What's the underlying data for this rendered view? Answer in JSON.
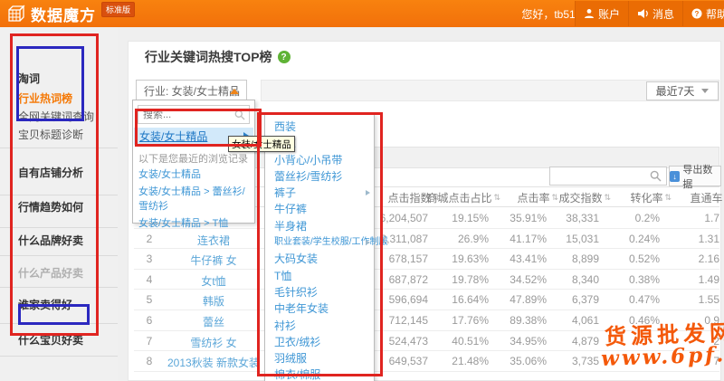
{
  "header": {
    "logo": "数据魔方",
    "badge": "标准版",
    "greeting": "您好，tb5198568",
    "vip_glyph": "♥",
    "nav": [
      {
        "label": "账户",
        "icon": "user-icon"
      },
      {
        "label": "消息",
        "icon": "message-icon"
      },
      {
        "label": "帮助",
        "icon": "help-icon"
      }
    ]
  },
  "sidebar": {
    "items": [
      {
        "label": "淘词",
        "type": "section",
        "active": false
      },
      {
        "label": "行业热词榜",
        "type": "sub",
        "active": true
      },
      {
        "label": "全网关键词查询",
        "type": "sub",
        "active": false
      },
      {
        "label": "宝贝标题诊断",
        "type": "sub",
        "active": false
      },
      {
        "label": "自有店铺分析",
        "type": "section",
        "active": false
      },
      {
        "label": "行情趋势如何",
        "type": "section",
        "active": false
      },
      {
        "label": "什么品牌好卖",
        "type": "section",
        "active": false
      },
      {
        "label": "什么产品好卖",
        "type": "disabled",
        "active": false
      },
      {
        "label": "谁家卖得好",
        "type": "section",
        "active": false
      },
      {
        "label": "什么宝贝好卖",
        "type": "section",
        "active": false
      }
    ]
  },
  "main": {
    "title": "行业关键词热搜TOP榜",
    "help_glyph": "?",
    "industry_control": "行业: 女装/女士精品",
    "date_filter": "最近7天"
  },
  "category_dropdown": {
    "search_placeholder": "搜索...",
    "highlighted_item": "女装/女士精品",
    "history_title": "以下是您最近的浏览记录",
    "history_items": [
      "女装/女士精品",
      "女装/女士精品 > 蕾丝衫/雪纺衫",
      "女装/女士精品 > T恤"
    ]
  },
  "tooltip_text": "女装/女士精品",
  "submenu": {
    "items": [
      {
        "label": "西装",
        "arrow": false
      },
      {
        "label": "毛衣",
        "arrow": false
      },
      {
        "label": "小背心/小吊带",
        "arrow": false
      },
      {
        "label": "蕾丝衫/雪纺衫",
        "arrow": false
      },
      {
        "label": "裤子",
        "arrow": true
      },
      {
        "label": "牛仔裤",
        "arrow": false
      },
      {
        "label": "半身裙",
        "arrow": false
      },
      {
        "label": "职业套装/学生校服/工作制服",
        "arrow": true,
        "small": true
      },
      {
        "label": "大码女装",
        "arrow": false
      },
      {
        "label": "T恤",
        "arrow": false
      },
      {
        "label": "毛针织衫",
        "arrow": false
      },
      {
        "label": "中老年女装",
        "arrow": false
      },
      {
        "label": "衬衫",
        "arrow": false
      },
      {
        "label": "卫衣/绒衫",
        "arrow": false
      },
      {
        "label": "羽绒服",
        "arrow": false
      },
      {
        "label": "棉衣/棉服",
        "arrow": false
      }
    ]
  },
  "table": {
    "export_label": "导出数据",
    "sort_glyph": "⇅",
    "headers": [
      "点击指数",
      "商城点击占比",
      "点击率",
      "成交指数",
      "转化率",
      "直通车"
    ],
    "rows": [
      {
        "rank": "",
        "keyword": "",
        "values": [
          "6,204,507",
          "19.15%",
          "35.91%",
          "38,331",
          "0.2%",
          "1.7"
        ]
      },
      {
        "rank": "2",
        "keyword": "连衣裙",
        "values": [
          "2,311,087",
          "26.9%",
          "41.17%",
          "15,031",
          "0.24%",
          "1.31"
        ]
      },
      {
        "rank": "3",
        "keyword": "牛仔裤 女",
        "values": [
          "678,157",
          "19.63%",
          "43.41%",
          "8,899",
          "0.52%",
          "2.16"
        ]
      },
      {
        "rank": "4",
        "keyword": "女t恤",
        "values": [
          "687,872",
          "19.78%",
          "34.52%",
          "8,340",
          "0.38%",
          "1.49"
        ]
      },
      {
        "rank": "5",
        "keyword": "韩版",
        "values": [
          "596,694",
          "16.64%",
          "47.89%",
          "6,379",
          "0.47%",
          "1.55"
        ]
      },
      {
        "rank": "6",
        "keyword": "蕾丝",
        "values": [
          "712,145",
          "17.76%",
          "89.38%",
          "4,061",
          "0.46%",
          "0.9"
        ]
      },
      {
        "rank": "7",
        "keyword": "雪纺衫 女",
        "values": [
          "524,473",
          "40.51%",
          "34.95%",
          "4,879",
          "",
          "2"
        ]
      },
      {
        "rank": "8",
        "keyword": "2013秋装 新款女装",
        "values": [
          "649,537",
          "21.48%",
          "35.06%",
          "3,735",
          "",
          "7"
        ]
      }
    ]
  },
  "watermark": {
    "line1": "货源批发网",
    "line2": "www.6pf.cn"
  },
  "annotation_colors": {
    "red": "#e02420",
    "blue": "#2b28bf"
  }
}
